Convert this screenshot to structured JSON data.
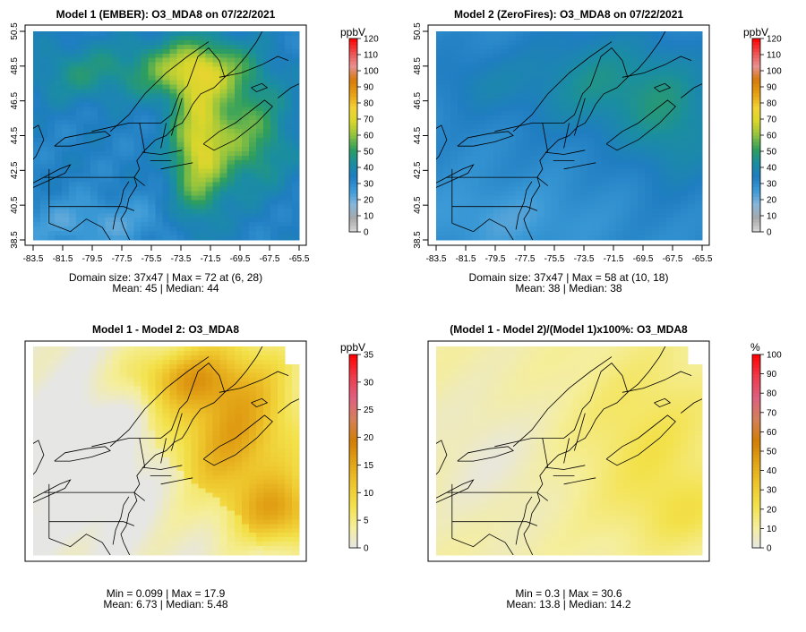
{
  "chart_data": [
    {
      "type": "heatmap",
      "panel": "model1",
      "title": "Model 1 (EMBER): O3_MDA8 on 07/22/2021",
      "unit_label": "ppbV",
      "x_ticks": [
        "-83.5",
        "-81.5",
        "-79.5",
        "-77.5",
        "-75.5",
        "-73.5",
        "-71.5",
        "-69.5",
        "-67.5",
        "-65.5"
      ],
      "y_ticks": [
        "38.5",
        "40.5",
        "42.5",
        "44.5",
        "46.5",
        "48.5",
        "50.5"
      ],
      "xlim": [
        -83.5,
        -65.5
      ],
      "ylim": [
        38.5,
        50.5
      ],
      "colorbar_ticks": [
        "0",
        "10",
        "20",
        "30",
        "40",
        "50",
        "60",
        "70",
        "80",
        "90",
        "100",
        "110",
        "120"
      ],
      "colorbar_range": [
        0,
        120
      ],
      "stats_line1": "Domain size: 37x47 | Max = 72 at (6, 28)",
      "stats_line2": "Mean: 45 |  Median: 44",
      "domain_size": [
        37,
        47
      ],
      "max": 72,
      "mean": 45,
      "median": 44
    },
    {
      "type": "heatmap",
      "panel": "model2",
      "title": "Model 2 (ZeroFires): O3_MDA8 on 07/22/2021",
      "unit_label": "ppbV",
      "x_ticks": [
        "-83.5",
        "-81.5",
        "-79.5",
        "-77.5",
        "-75.5",
        "-73.5",
        "-71.5",
        "-69.5",
        "-67.5",
        "-65.5"
      ],
      "y_ticks": [
        "38.5",
        "40.5",
        "42.5",
        "44.5",
        "46.5",
        "48.5",
        "50.5"
      ],
      "xlim": [
        -83.5,
        -65.5
      ],
      "ylim": [
        38.5,
        50.5
      ],
      "colorbar_ticks": [
        "0",
        "10",
        "20",
        "30",
        "40",
        "50",
        "60",
        "70",
        "80",
        "90",
        "100",
        "110",
        "120"
      ],
      "colorbar_range": [
        0,
        120
      ],
      "stats_line1": "Domain size: 37x47 | Max = 58 at (10, 18)",
      "stats_line2": "Mean: 38 |  Median: 38",
      "domain_size": [
        37,
        47
      ],
      "max": 58,
      "mean": 38,
      "median": 38
    },
    {
      "type": "heatmap",
      "panel": "diff",
      "title": "Model 1 - Model 2: O3_MDA8",
      "unit_label": "ppbV",
      "colorbar_ticks": [
        "0",
        "5",
        "10",
        "15",
        "20",
        "25",
        "30",
        "35"
      ],
      "colorbar_range": [
        0,
        35
      ],
      "stats_line1": "Min = 0.099 | Max = 17.9",
      "stats_line2": "Mean: 6.73 |  Median: 5.48",
      "min": 0.099,
      "max": 17.9,
      "mean": 6.73,
      "median": 5.48
    },
    {
      "type": "heatmap",
      "panel": "pctdiff",
      "title": "(Model 1 - Model 2)/(Model 1)x100%: O3_MDA8",
      "unit_label": "%",
      "colorbar_ticks": [
        "0",
        "10",
        "20",
        "30",
        "40",
        "50",
        "60",
        "70",
        "80",
        "90",
        "100"
      ],
      "colorbar_range": [
        0,
        100
      ],
      "stats_line1": "Min = 0.3 | Max = 30.6",
      "stats_line2": "Mean: 13.8 |  Median: 14.2",
      "min": 0.3,
      "max": 30.6,
      "mean": 13.8,
      "median": 14.2
    }
  ],
  "colors": {
    "ozone_palette": [
      "#d9d9d9",
      "#a8a8a8",
      "#86b6dc",
      "#3b9ad6",
      "#1f7dc1",
      "#1a8ea0",
      "#2e9e5e",
      "#8fc23f",
      "#d8d62c",
      "#f2d235",
      "#e6a015",
      "#d77a08",
      "#e89090",
      "#ee5050",
      "#ff0000"
    ],
    "diff_palette": [
      "#e6e6e6",
      "#f5ee9a",
      "#f3e14a",
      "#eec52c",
      "#e2a316",
      "#d27d06",
      "#d4805a",
      "#de6080",
      "#ee3a4a",
      "#ff0000"
    ],
    "map_lines": "#000000",
    "frame": "#000000"
  }
}
